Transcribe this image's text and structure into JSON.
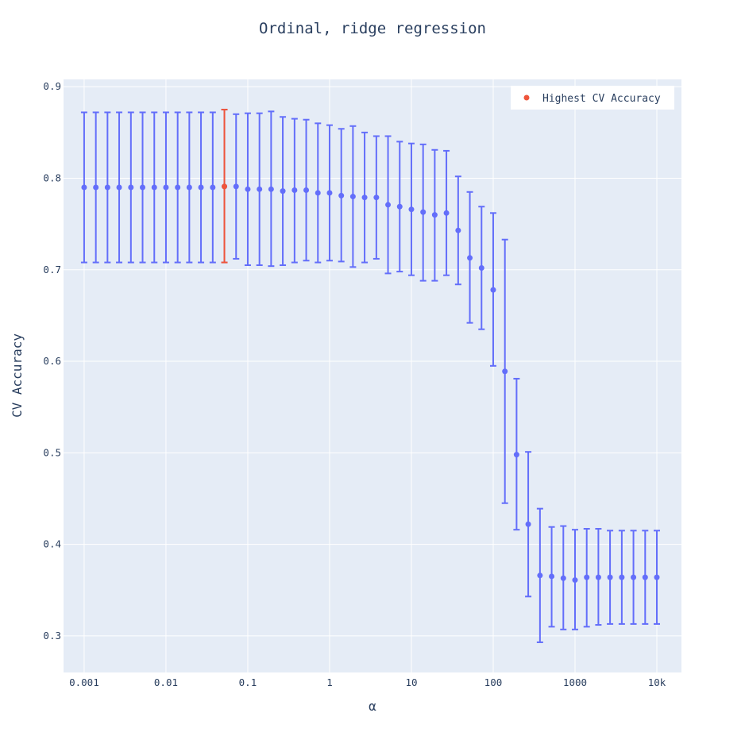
{
  "chart_data": {
    "type": "scatter",
    "title": "Ordinal, ridge regression",
    "xlabel": "α",
    "ylabel": "CV Accuracy",
    "x_scale": "log",
    "xlim": [
      0.00056,
      20000
    ],
    "ylim": [
      0.26,
      0.908
    ],
    "x_ticks": [
      {
        "value": 0.001,
        "label": "0.001"
      },
      {
        "value": 0.01,
        "label": "0.01"
      },
      {
        "value": 0.1,
        "label": "0.1"
      },
      {
        "value": 1,
        "label": "1"
      },
      {
        "value": 10,
        "label": "10"
      },
      {
        "value": 100,
        "label": "100"
      },
      {
        "value": 1000,
        "label": "1000"
      },
      {
        "value": 10000,
        "label": "10k"
      }
    ],
    "y_ticks": [
      {
        "value": 0.3,
        "label": "0.3"
      },
      {
        "value": 0.4,
        "label": "0.4"
      },
      {
        "value": 0.5,
        "label": "0.5"
      },
      {
        "value": 0.6,
        "label": "0.6"
      },
      {
        "value": 0.7,
        "label": "0.7"
      },
      {
        "value": 0.8,
        "label": "0.8"
      },
      {
        "value": 0.9,
        "label": "0.9"
      }
    ],
    "grid": true,
    "legend_position": "top-right",
    "colors": {
      "series": "#636efa",
      "highlight": "#ef553b",
      "plot_bg": "#e5ecf6",
      "grid": "#ffffff",
      "text": "#2a3f5f"
    },
    "series": [
      {
        "x": [
          0.001,
          0.00139,
          0.00193,
          0.00268,
          0.00373,
          0.00518,
          0.0072,
          0.01,
          0.0139,
          0.0193,
          0.0268,
          0.0373,
          0.0518,
          0.072,
          0.1,
          0.139,
          0.193,
          0.268,
          0.373,
          0.518,
          0.72,
          1,
          1.39,
          1.93,
          2.68,
          3.73,
          5.18,
          7.2,
          10,
          13.9,
          19.3,
          26.8,
          37.3,
          51.8,
          72,
          100,
          139,
          193,
          268,
          373,
          518,
          720,
          1000,
          1390,
          1930,
          2680,
          3730,
          5180,
          7200,
          10000
        ],
        "y": [
          0.79,
          0.79,
          0.79,
          0.79,
          0.79,
          0.79,
          0.79,
          0.79,
          0.79,
          0.79,
          0.79,
          0.79,
          0.791,
          0.791,
          0.788,
          0.788,
          0.788,
          0.786,
          0.787,
          0.787,
          0.784,
          0.784,
          0.781,
          0.78,
          0.779,
          0.779,
          0.771,
          0.769,
          0.766,
          0.763,
          0.76,
          0.762,
          0.743,
          0.713,
          0.702,
          0.678,
          0.589,
          0.498,
          0.422,
          0.366,
          0.365,
          0.363,
          0.361,
          0.364,
          0.364,
          0.364,
          0.364,
          0.364,
          0.364,
          0.364
        ],
        "error_upper": [
          0.872,
          0.872,
          0.872,
          0.872,
          0.872,
          0.872,
          0.872,
          0.872,
          0.872,
          0.872,
          0.872,
          0.872,
          0.875,
          0.87,
          0.871,
          0.871,
          0.873,
          0.867,
          0.865,
          0.864,
          0.86,
          0.858,
          0.854,
          0.857,
          0.85,
          0.846,
          0.846,
          0.84,
          0.838,
          0.837,
          0.831,
          0.83,
          0.802,
          0.785,
          0.769,
          0.762,
          0.733,
          0.581,
          0.501,
          0.439,
          0.419,
          0.42,
          0.416,
          0.417,
          0.417,
          0.415,
          0.415,
          0.415,
          0.415,
          0.415
        ],
        "error_lower": [
          0.708,
          0.708,
          0.708,
          0.708,
          0.708,
          0.708,
          0.708,
          0.708,
          0.708,
          0.708,
          0.708,
          0.708,
          0.708,
          0.712,
          0.705,
          0.705,
          0.704,
          0.705,
          0.708,
          0.71,
          0.708,
          0.71,
          0.709,
          0.703,
          0.708,
          0.712,
          0.696,
          0.698,
          0.694,
          0.688,
          0.688,
          0.694,
          0.684,
          0.642,
          0.635,
          0.595,
          0.445,
          0.416,
          0.343,
          0.293,
          0.31,
          0.307,
          0.307,
          0.31,
          0.312,
          0.313,
          0.313,
          0.313,
          0.313,
          0.313
        ]
      },
      {
        "name": "Highest CV Accuracy",
        "x": [
          0.0518
        ],
        "y": [
          0.791
        ],
        "error_upper": [
          0.875
        ],
        "error_lower": [
          0.708
        ]
      }
    ]
  }
}
